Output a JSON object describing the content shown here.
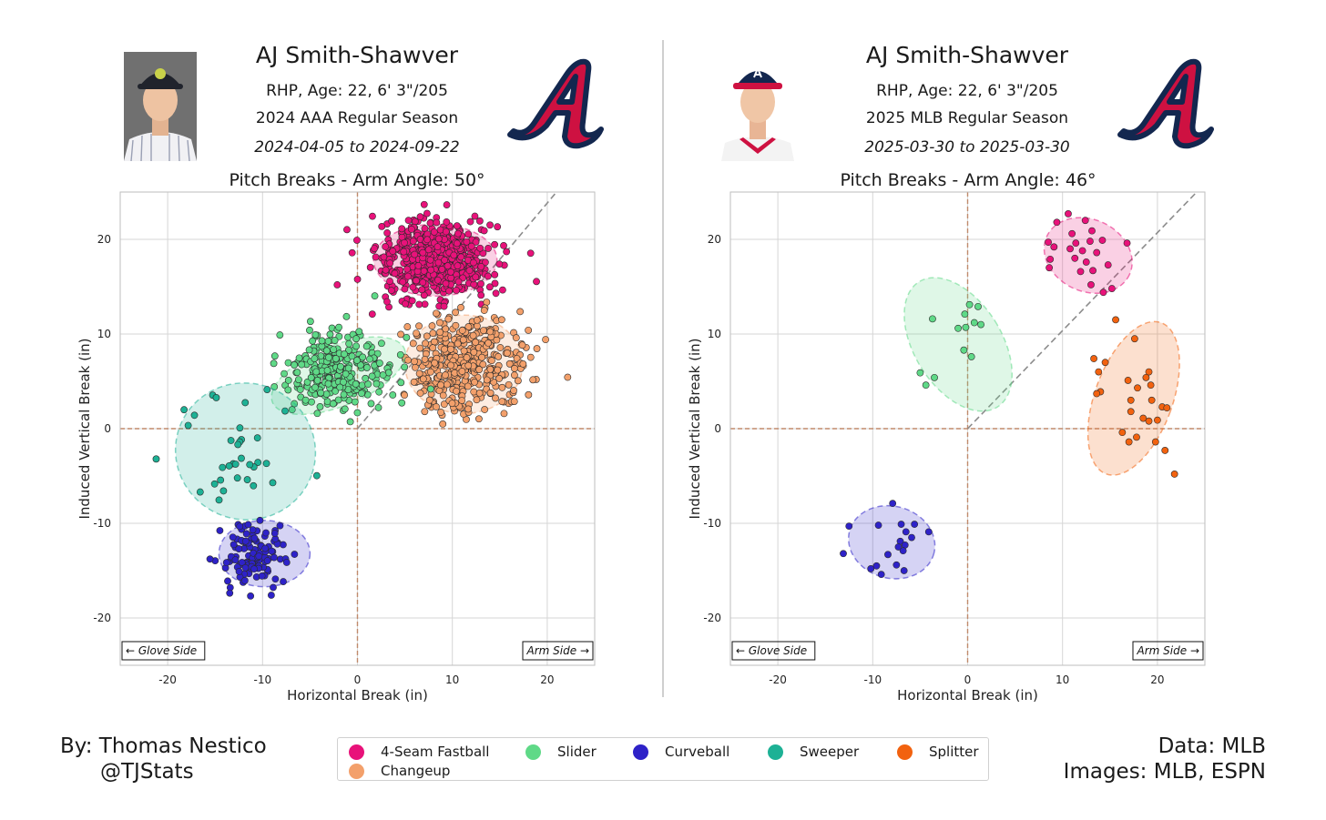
{
  "credits": {
    "author": "By: Thomas Nestico",
    "handle": "@TJStats",
    "data_source": "Data: MLB",
    "images_source": "Images: MLB, ESPN"
  },
  "legend": [
    {
      "name": "4-Seam Fastball",
      "color": "#e8127a"
    },
    {
      "name": "Slider",
      "color": "#5fd987"
    },
    {
      "name": "Curveball",
      "color": "#2e22c8"
    },
    {
      "name": "Sweeper",
      "color": "#1db195"
    },
    {
      "name": "Splitter",
      "color": "#f2620f"
    },
    {
      "name": "Changeup",
      "color": "#f3a06b"
    }
  ],
  "panels": [
    {
      "player_name": "AJ Smith-Shawver",
      "info": "RHP, Age: 22, 6' 3\"/205",
      "season": "2024 AAA Regular Season",
      "dates": "2024-04-05 to 2024-09-22",
      "photo_icon": "player-headshot-minor-league",
      "logo_icon": "atlanta-braves-a-logo"
    },
    {
      "player_name": "AJ Smith-Shawver",
      "info": "RHP, Age: 22, 6' 3\"/205",
      "season": "2025 MLB Regular Season",
      "dates": "2025-03-30 to 2025-03-30",
      "photo_icon": "player-headshot-braves",
      "logo_icon": "atlanta-braves-a-logo"
    }
  ],
  "chart_data": [
    {
      "type": "scatter",
      "title": "Pitch Breaks - Arm Angle: 50°",
      "xlabel": "Horizontal Break (in)",
      "ylabel": "Induced Vertical Break (in)",
      "xlim": [
        -25,
        25
      ],
      "ylim": [
        -25,
        25
      ],
      "xticks": [
        -20,
        -10,
        0,
        10,
        20
      ],
      "yticks": [
        -20,
        -10,
        0,
        10,
        20
      ],
      "grid": true,
      "glove_side_label": "← Glove Side",
      "arm_side_label": "Arm Side →",
      "arm_angle_deg": 50,
      "series": [
        {
          "name": "4-Seam Fastball",
          "color": "#e8127a",
          "count": 620,
          "center": [
            8.2,
            17.8
          ],
          "spread": [
            3.0,
            2.0
          ],
          "ellipse": {
            "center": [
              8.2,
              17.8
            ],
            "rx": 6.5,
            "ry": 3.8,
            "angle": 0
          }
        },
        {
          "name": "Changeup",
          "color": "#f3a06b",
          "count": 420,
          "center": [
            11.2,
            6.8
          ],
          "spread": [
            2.8,
            2.6
          ],
          "ellipse": {
            "center": [
              11.2,
              6.8
            ],
            "rx": 6.2,
            "ry": 5.2,
            "angle": 0
          }
        },
        {
          "name": "Slider",
          "color": "#5fd987",
          "count": 280,
          "center": [
            -2.0,
            6.0
          ],
          "spread": [
            3.0,
            2.0
          ],
          "ellipse": {
            "center": [
              -2.0,
              5.6
            ],
            "rx": 7.5,
            "ry": 3.2,
            "angle": 22
          }
        },
        {
          "name": "Sweeper",
          "color": "#1db195",
          "count": 34,
          "center": [
            -12.5,
            -2.5
          ],
          "spread": [
            3.5,
            3.6
          ],
          "ellipse": {
            "center": [
              -11.8,
              -2.4
            ],
            "rx": 7.4,
            "ry": 7.2,
            "angle": -20
          }
        },
        {
          "name": "Curveball",
          "color": "#2e22c8",
          "count": 120,
          "center": [
            -11.0,
            -13.4
          ],
          "spread": [
            1.7,
            1.7
          ],
          "ellipse": {
            "center": [
              -9.8,
              -13.2
            ],
            "rx": 4.8,
            "ry": 3.5,
            "angle": 0
          }
        }
      ]
    },
    {
      "type": "scatter",
      "title": "Pitch Breaks - Arm Angle: 46°",
      "xlabel": "Horizontal Break (in)",
      "ylabel": "Induced Vertical Break (in)",
      "xlim": [
        -25,
        25
      ],
      "ylim": [
        -25,
        25
      ],
      "xticks": [
        -20,
        -10,
        0,
        10,
        20
      ],
      "yticks": [
        -20,
        -10,
        0,
        10,
        20
      ],
      "grid": true,
      "glove_side_label": "← Glove Side",
      "arm_side_label": "Arm Side →",
      "arm_angle_deg": 46,
      "series": [
        {
          "name": "4-Seam Fastball",
          "color": "#e8127a",
          "points": [
            [
              10.6,
              22.7
            ],
            [
              12.4,
              22.0
            ],
            [
              9.4,
              21.8
            ],
            [
              13.1,
              20.9
            ],
            [
              11.0,
              20.6
            ],
            [
              8.5,
              19.7
            ],
            [
              11.4,
              19.6
            ],
            [
              12.9,
              19.8
            ],
            [
              14.2,
              19.9
            ],
            [
              16.8,
              19.6
            ],
            [
              9.1,
              19.2
            ],
            [
              10.8,
              19.0
            ],
            [
              12.1,
              18.8
            ],
            [
              13.6,
              18.6
            ],
            [
              8.7,
              17.9
            ],
            [
              11.3,
              18.0
            ],
            [
              12.5,
              17.6
            ],
            [
              14.8,
              17.3
            ],
            [
              11.9,
              16.6
            ],
            [
              13.2,
              16.7
            ],
            [
              8.6,
              17.0
            ],
            [
              14.3,
              14.4
            ],
            [
              15.2,
              14.8
            ],
            [
              13.0,
              15.2
            ]
          ],
          "ellipse": {
            "center": [
              12.7,
              18.3
            ],
            "rx": 4.8,
            "ry": 3.8,
            "angle": -25
          }
        },
        {
          "name": "Slider",
          "color": "#5fd987",
          "points": [
            [
              -3.7,
              11.6
            ],
            [
              0.2,
              13.1
            ],
            [
              1.1,
              12.9
            ],
            [
              -0.3,
              12.1
            ],
            [
              0.7,
              11.2
            ],
            [
              1.4,
              11.0
            ],
            [
              -0.2,
              10.7
            ],
            [
              -1.0,
              10.6
            ],
            [
              -0.4,
              8.3
            ],
            [
              0.4,
              7.6
            ],
            [
              -5.0,
              5.9
            ],
            [
              -3.5,
              5.4
            ],
            [
              -4.4,
              4.6
            ]
          ],
          "ellipse": {
            "center": [
              -1.0,
              8.9
            ],
            "rx": 4.6,
            "ry": 7.8,
            "angle": 32
          }
        },
        {
          "name": "Curveball",
          "color": "#2e22c8",
          "points": [
            [
              -7.9,
              -7.9
            ],
            [
              -12.5,
              -10.3
            ],
            [
              -9.4,
              -10.2
            ],
            [
              -5.6,
              -10.1
            ],
            [
              -7.0,
              -10.1
            ],
            [
              -4.1,
              -10.9
            ],
            [
              -6.5,
              -10.9
            ],
            [
              -5.9,
              -11.5
            ],
            [
              -7.1,
              -11.9
            ],
            [
              -6.6,
              -12.3
            ],
            [
              -7.3,
              -12.5
            ],
            [
              -6.8,
              -12.9
            ],
            [
              -13.1,
              -13.2
            ],
            [
              -8.4,
              -13.3
            ],
            [
              -9.6,
              -14.5
            ],
            [
              -7.5,
              -14.4
            ],
            [
              -10.2,
              -14.8
            ],
            [
              -6.7,
              -15.0
            ],
            [
              -9.1,
              -15.4
            ]
          ],
          "ellipse": {
            "center": [
              -8.0,
              -12.0
            ],
            "rx": 4.6,
            "ry": 3.8,
            "angle": -15
          }
        },
        {
          "name": "Splitter",
          "color": "#f2620f",
          "points": [
            [
              15.6,
              11.5
            ],
            [
              17.6,
              9.5
            ],
            [
              13.3,
              7.4
            ],
            [
              14.5,
              7.0
            ],
            [
              19.1,
              6.0
            ],
            [
              13.8,
              6.0
            ],
            [
              18.8,
              5.4
            ],
            [
              16.9,
              5.1
            ],
            [
              19.3,
              4.6
            ],
            [
              14.0,
              3.9
            ],
            [
              17.9,
              4.3
            ],
            [
              13.6,
              3.7
            ],
            [
              17.2,
              3.0
            ],
            [
              19.4,
              3.0
            ],
            [
              20.5,
              2.3
            ],
            [
              21.0,
              2.2
            ],
            [
              17.2,
              1.8
            ],
            [
              18.5,
              1.1
            ],
            [
              19.1,
              0.8
            ],
            [
              20.0,
              0.9
            ],
            [
              16.3,
              -0.4
            ],
            [
              17.8,
              -0.9
            ],
            [
              17.0,
              -1.4
            ],
            [
              19.8,
              -1.4
            ],
            [
              20.8,
              -2.3
            ],
            [
              21.8,
              -4.8
            ]
          ],
          "ellipse": {
            "center": [
              17.5,
              3.2
            ],
            "rx": 4.1,
            "ry": 8.5,
            "angle": -20
          }
        }
      ]
    }
  ]
}
